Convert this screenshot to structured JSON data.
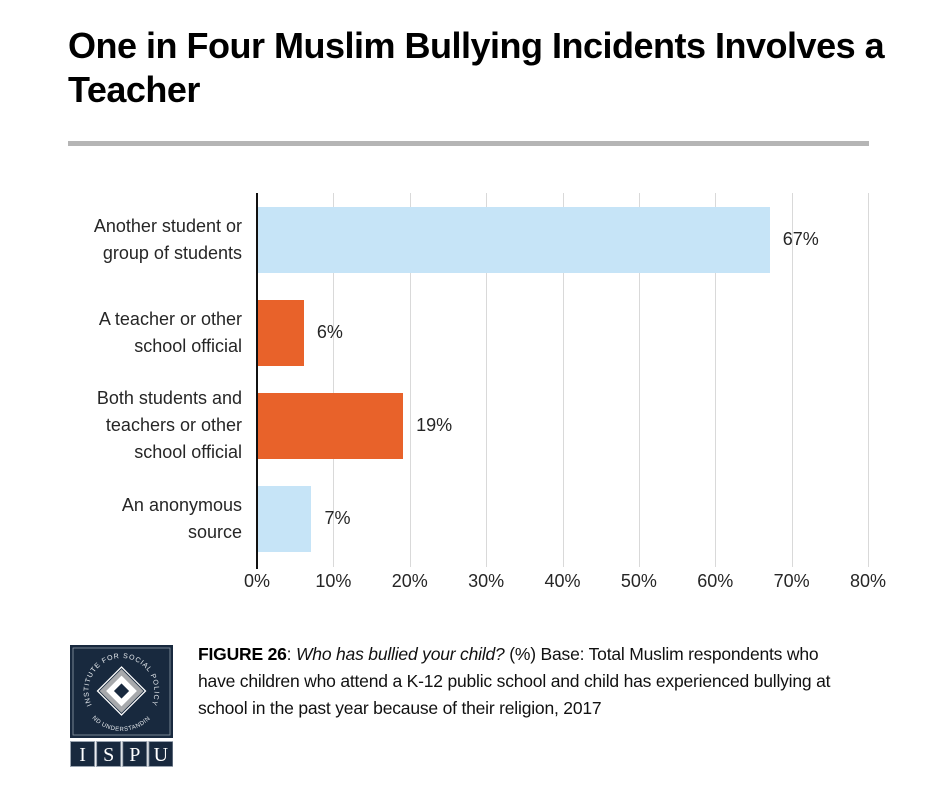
{
  "title": "One in Four Muslim Bullying Incidents Involves a Teacher",
  "chart_data": {
    "type": "bar",
    "orientation": "horizontal",
    "title": "One in Four Muslim Bullying Incidents Involves a Teacher",
    "categories": [
      "Another student or group of students",
      "A teacher or other school official",
      "Both students and teachers or other school official",
      "An anonymous source"
    ],
    "category_label_lines": [
      [
        "Another student or",
        "group of students"
      ],
      [
        "A teacher or other",
        "school official"
      ],
      [
        "Both students and",
        "teachers or other",
        "school official"
      ],
      [
        "An anonymous",
        "source"
      ]
    ],
    "values": [
      67,
      6,
      19,
      7
    ],
    "value_labels": [
      "67%",
      "6%",
      "19%",
      "7%"
    ],
    "bar_colors": [
      "#c6e4f7",
      "#e8622a",
      "#e8622a",
      "#c6e4f7"
    ],
    "x_ticks": [
      "0%",
      "10%",
      "20%",
      "30%",
      "40%",
      "50%",
      "60%",
      "70%",
      "80%"
    ],
    "xlim": [
      0,
      80
    ],
    "xlabel": "",
    "ylabel": "",
    "grid": true,
    "legend_position": "none"
  },
  "colors": {
    "light_blue": "#c6e4f7",
    "orange": "#e8622a",
    "gridline": "#d9d9d9",
    "axis_line": "#111111",
    "divider": "#b5b5b5",
    "logo_navy": "#18293e",
    "logo_gray": "#a7a9ac",
    "text": "#262626"
  },
  "footer": {
    "figure_label": "FIGURE 26",
    "separator": ": ",
    "question_italic": "Who has bullied your child?",
    "caption_rest": " (%) Base: Total Muslim respondents who have children who attend a K-12 public school and child has experienced bullying at school in the past year because of their religion, 2017",
    "logo": {
      "name": "ISPU logo",
      "ring_text_top": "INSTITUTE FOR SOCIAL POLICY",
      "ring_text_bottom": "AND UNDERSTANDING",
      "letters": [
        "I",
        "S",
        "P",
        "U"
      ]
    }
  }
}
